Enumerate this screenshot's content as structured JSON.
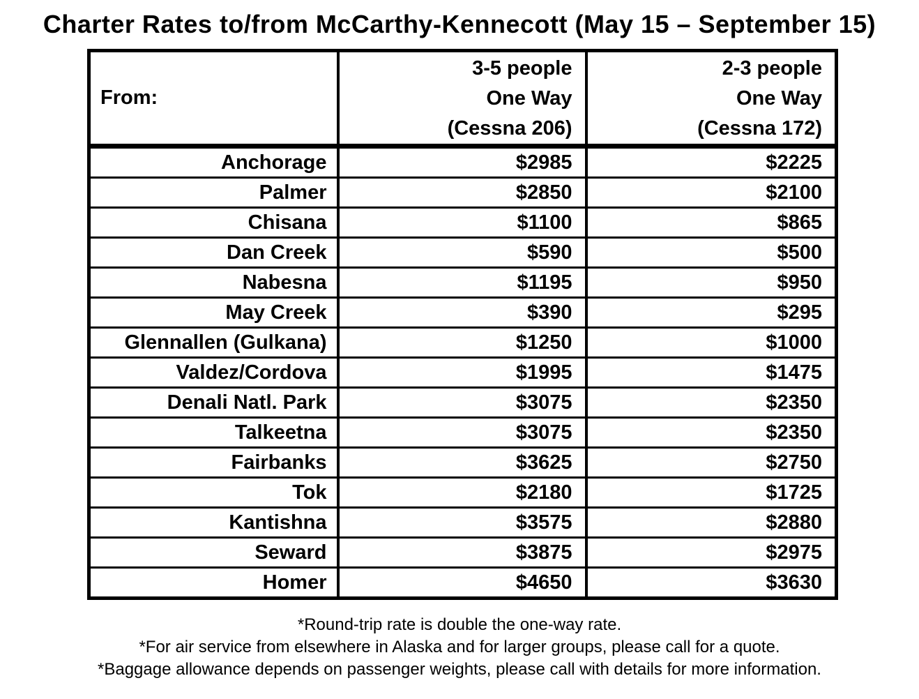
{
  "title": "Charter Rates to/from McCarthy-Kennecott (May 15 – September 15)",
  "colors": {
    "text": "#000000",
    "background": "#ffffff",
    "border": "#000000"
  },
  "table": {
    "header": {
      "from_label": "From:",
      "col_206_lines": [
        "3-5 people",
        "One Way",
        "(Cessna 206)"
      ],
      "col_172_lines": [
        "2-3 people",
        "One Way",
        "(Cessna 172)"
      ]
    },
    "rows": [
      {
        "from": "Anchorage",
        "rate_206": "$2985",
        "rate_172": "$2225"
      },
      {
        "from": "Palmer",
        "rate_206": "$2850",
        "rate_172": "$2100"
      },
      {
        "from": "Chisana",
        "rate_206": "$1100",
        "rate_172": "$865"
      },
      {
        "from": "Dan Creek",
        "rate_206": "$590",
        "rate_172": "$500"
      },
      {
        "from": "Nabesna",
        "rate_206": "$1195",
        "rate_172": "$950"
      },
      {
        "from": "May Creek",
        "rate_206": "$390",
        "rate_172": "$295"
      },
      {
        "from": "Glennallen (Gulkana)",
        "rate_206": "$1250",
        "rate_172": "$1000"
      },
      {
        "from": "Valdez/Cordova",
        "rate_206": "$1995",
        "rate_172": "$1475"
      },
      {
        "from": "Denali Natl. Park",
        "rate_206": "$3075",
        "rate_172": "$2350"
      },
      {
        "from": "Talkeetna",
        "rate_206": "$3075",
        "rate_172": "$2350"
      },
      {
        "from": "Fairbanks",
        "rate_206": "$3625",
        "rate_172": "$2750"
      },
      {
        "from": "Tok",
        "rate_206": "$2180",
        "rate_172": "$1725"
      },
      {
        "from": "Kantishna",
        "rate_206": "$3575",
        "rate_172": "$2880"
      },
      {
        "from": "Seward",
        "rate_206": "$3875",
        "rate_172": "$2975"
      },
      {
        "from": "Homer",
        "rate_206": "$4650",
        "rate_172": "$3630"
      }
    ]
  },
  "notes": [
    "*Round-trip rate is double the one-way rate.",
    "*For air service from elsewhere in Alaska and for larger groups, please call for a quote.",
    "*Baggage allowance depends on passenger weights, please call with details for more information."
  ]
}
